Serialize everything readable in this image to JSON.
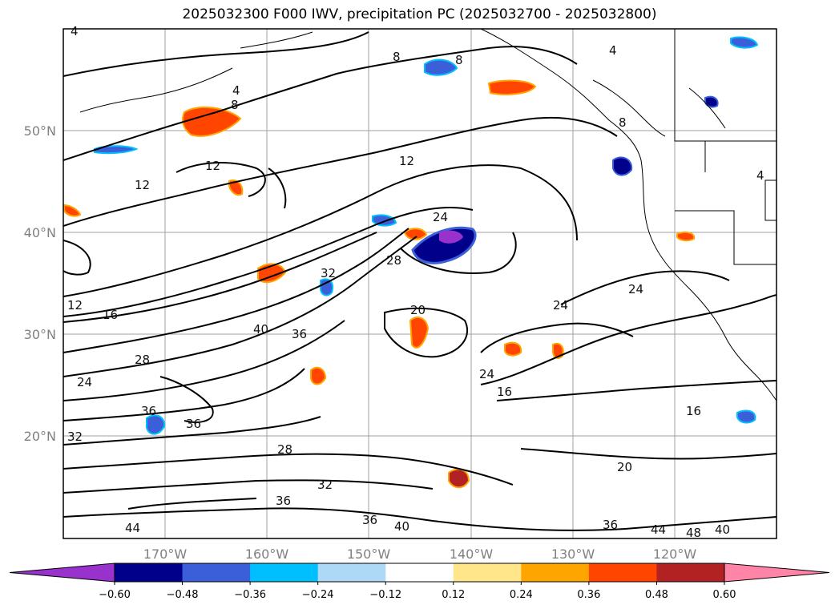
{
  "title": "2025032300 F000 IWV, precipitation PC (2025032700 - 2025032800)",
  "map": {
    "lat_ticks": [
      "50°N",
      "40°N",
      "30°N",
      "20°N"
    ],
    "lon_ticks": [
      "170°W",
      "160°W",
      "150°W",
      "140°W",
      "130°W",
      "120°W"
    ],
    "grid": true
  },
  "contour_labels": [
    "4",
    "4",
    "8",
    "8",
    "8",
    "8",
    "4",
    "4",
    "12",
    "12",
    "12",
    "12",
    "16",
    "16",
    "16",
    "20",
    "20",
    "24",
    "24",
    "24",
    "24",
    "28",
    "28",
    "32",
    "32",
    "32",
    "36",
    "36",
    "36",
    "36",
    "36",
    "36",
    "40",
    "40",
    "40",
    "44",
    "44",
    "48",
    "24",
    "28"
  ],
  "colorbar": {
    "ticks": [
      "−0.60",
      "−0.48",
      "−0.36",
      "−0.24",
      "−0.12",
      "0.12",
      "0.24",
      "0.36",
      "0.48",
      "0.60"
    ],
    "colors": [
      "#9932cc",
      "#00008b",
      "#3b5fd9",
      "#00bfff",
      "#add8f6",
      "#ffffff",
      "#ffe68a",
      "#ffa500",
      "#ff4500",
      "#b22222",
      "#ff85a8"
    ]
  }
}
